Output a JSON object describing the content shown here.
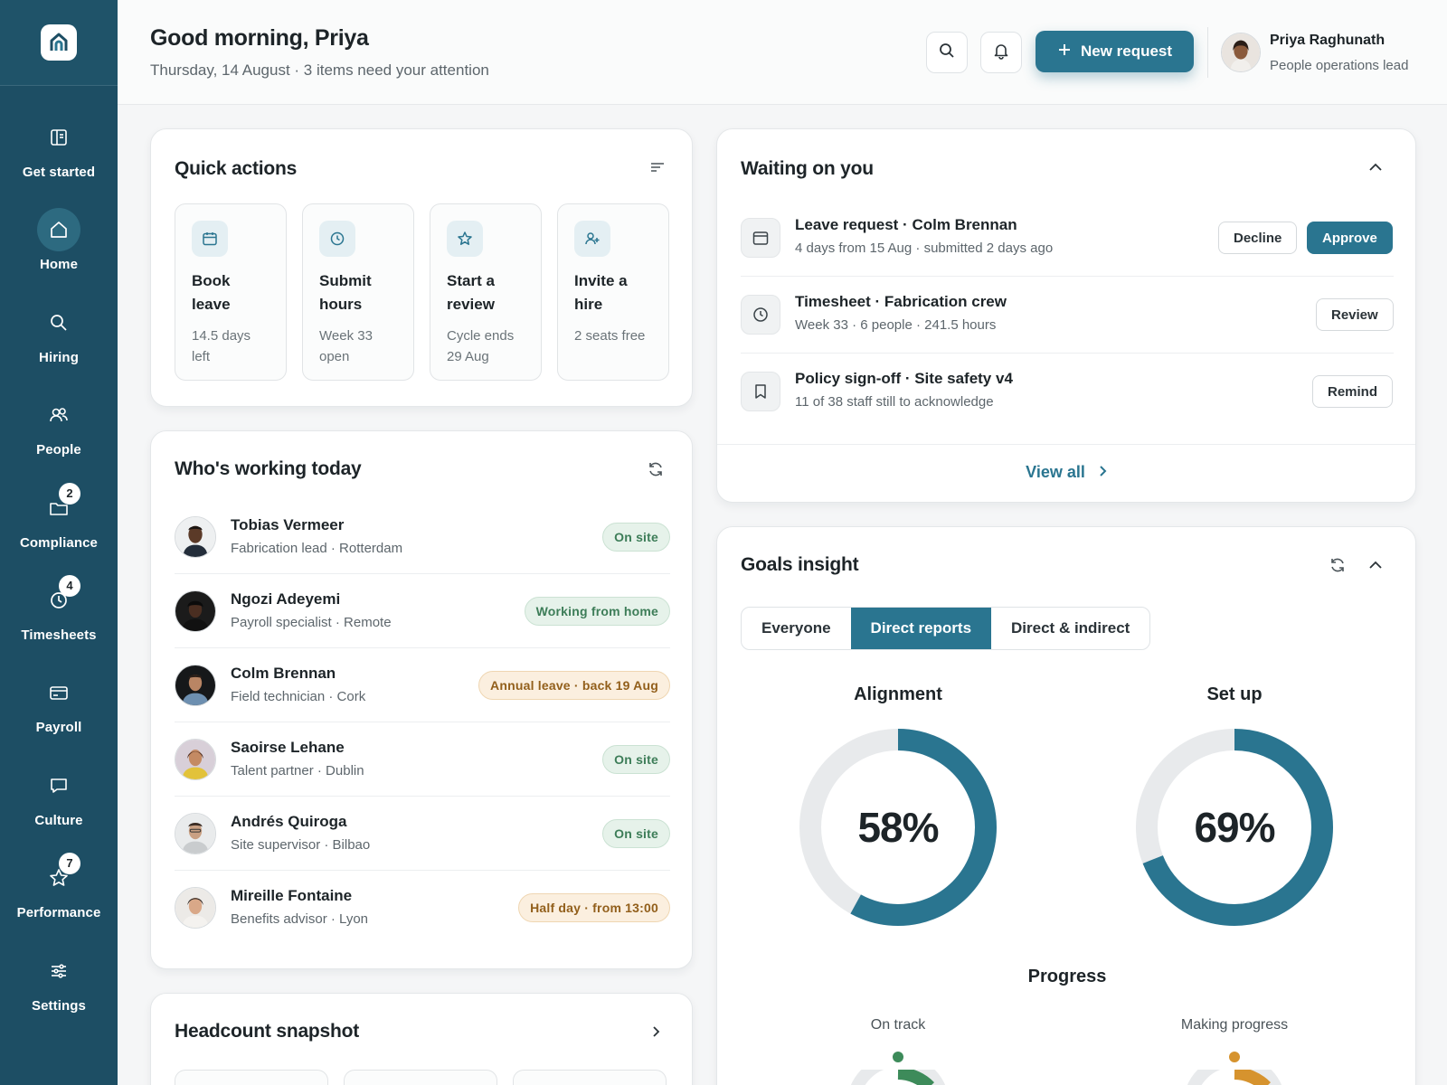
{
  "sidebar": {
    "items": [
      {
        "label": "Get started",
        "icon": "book-icon"
      },
      {
        "label": "Home",
        "icon": "home-icon"
      },
      {
        "label": "Hiring",
        "icon": "search-icon"
      },
      {
        "label": "People",
        "icon": "people-icon"
      },
      {
        "label": "Compliance",
        "icon": "folder-icon",
        "badge": "2"
      },
      {
        "label": "Timesheets",
        "icon": "clock-icon",
        "badge": "4"
      },
      {
        "label": "Payroll",
        "icon": "card-icon"
      },
      {
        "label": "Culture",
        "icon": "chat-icon"
      },
      {
        "label": "Performance",
        "icon": "star-icon",
        "badge": "7"
      },
      {
        "label": "Settings",
        "icon": "sliders-icon"
      }
    ]
  },
  "header": {
    "greeting": "Good morning, Priya",
    "subtitle": "Thursday, 14 August · 3 items need your attention",
    "new_request_label": "New request",
    "user": {
      "name": "Priya Raghunath",
      "role": "People operations lead"
    }
  },
  "quick_actions": {
    "title": "Quick actions",
    "tiles": [
      {
        "title": "Book leave",
        "sub": "14.5 days left",
        "icon": "calendar-icon"
      },
      {
        "title": "Submit hours",
        "sub": "Week 33 open",
        "icon": "clock-icon"
      },
      {
        "title": "Start a review",
        "sub": "Cycle ends 29 Aug",
        "icon": "star-icon"
      },
      {
        "title": "Invite a hire",
        "sub": "2 seats free",
        "icon": "user-plus-icon"
      }
    ]
  },
  "working_today": {
    "title": "Who's working today",
    "people": [
      {
        "name": "Tobias Vermeer",
        "role": "Fabrication lead · Rotterdam",
        "status": "On site",
        "tone": "green"
      },
      {
        "name": "Ngozi Adeyemi",
        "role": "Payroll specialist · Remote",
        "status": "Working from home",
        "tone": "green"
      },
      {
        "name": "Colm Brennan",
        "role": "Field technician · Cork",
        "status": "Annual leave · back 19 Aug",
        "tone": "amber"
      },
      {
        "name": "Saoirse Lehane",
        "role": "Talent partner · Dublin",
        "status": "On site",
        "tone": "green"
      },
      {
        "name": "Andrés Quiroga",
        "role": "Site supervisor · Bilbao",
        "status": "On site",
        "tone": "green"
      },
      {
        "name": "Mireille Fontaine",
        "role": "Benefits advisor · Lyon",
        "status": "Half day · from 13:00",
        "tone": "amber"
      }
    ]
  },
  "headcount": {
    "title": "Headcount snapshot"
  },
  "waiting": {
    "title": "Waiting on you",
    "items": [
      {
        "title": "Leave request · Colm Brennan",
        "sub": "4 days from 15 Aug · submitted 2 days ago",
        "icon": "calendar-icon",
        "actions": [
          "Decline",
          "Approve"
        ]
      },
      {
        "title": "Timesheet · Fabrication crew",
        "sub": "Week 33 · 6 people · 241.5 hours",
        "icon": "clock-icon",
        "actions": [
          "Review"
        ]
      },
      {
        "title": "Policy sign-off · Site safety v4",
        "sub": "11 of 38 staff still to acknowledge",
        "icon": "bookmark-icon",
        "actions": [
          "Remind"
        ]
      }
    ],
    "view_all_label": "View all"
  },
  "goals": {
    "title": "Goals insight",
    "tabs": [
      "Everyone",
      "Direct reports",
      "Direct & indirect"
    ],
    "active_tab": "Direct reports",
    "gauges": [
      {
        "label": "Alignment",
        "value_text": "58%",
        "value": 58
      },
      {
        "label": "Set up",
        "value_text": "69%",
        "value": 69
      }
    ],
    "progress": {
      "title": "Progress",
      "items": [
        {
          "label": "On track",
          "color": "#3d8b5a"
        },
        {
          "label": "Making progress",
          "color": "#d6932e"
        }
      ]
    }
  },
  "colors": {
    "sidebar": "#1d4e64",
    "accent": "#2a7590",
    "track": "#e8eaec"
  }
}
